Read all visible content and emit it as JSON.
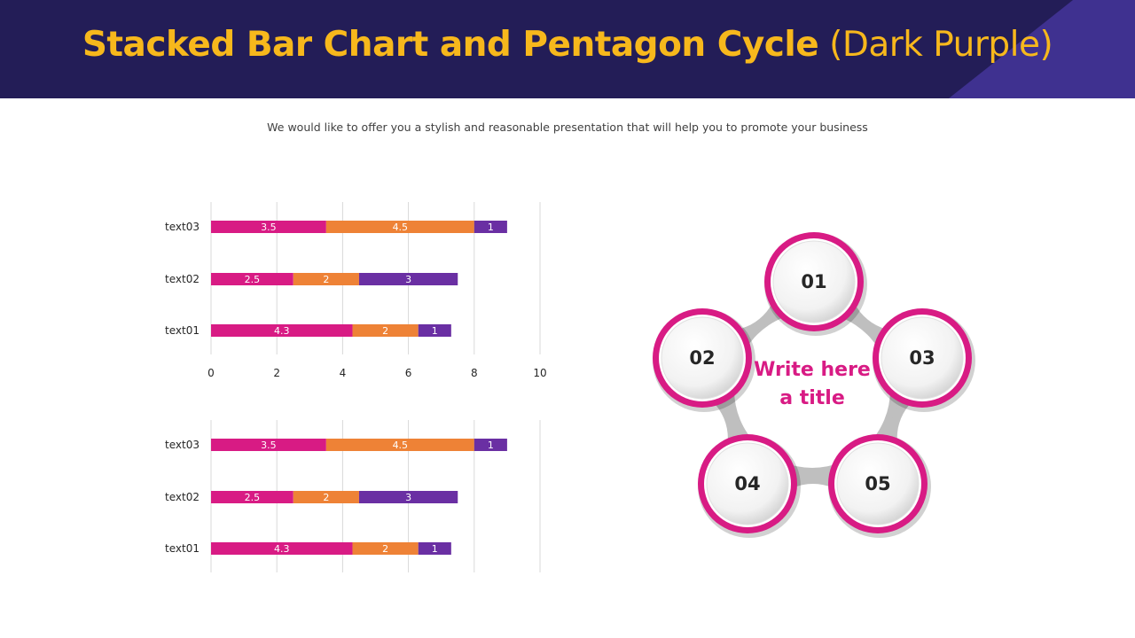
{
  "header": {
    "title_bold": "Stacked Bar Chart and Pentagon Cycle",
    "title_normal": "(Dark Purple)"
  },
  "subtitle": "We would like to offer you a stylish and reasonable presentation that will help you to promote your business",
  "colors": {
    "header_bg": "#231d57",
    "header_accent": "#3f3190",
    "title": "#f7b81c",
    "series": [
      "#d81b84",
      "#ee8236",
      "#6a2fa3"
    ],
    "ring": "#d81b84",
    "connector": "#bfbfbf",
    "center_text": "#d81b84"
  },
  "chart_data": [
    {
      "type": "bar",
      "orientation": "horizontal",
      "stacked": true,
      "categories": [
        "text03",
        "text02",
        "text01"
      ],
      "series": [
        {
          "values": [
            3.5,
            2.5,
            4.3
          ]
        },
        {
          "values": [
            4.5,
            2,
            2
          ]
        },
        {
          "values": [
            1,
            3,
            1
          ]
        }
      ],
      "xlim": [
        0,
        10
      ],
      "x_ticks": [
        "0",
        "2",
        "4",
        "6",
        "8",
        "10"
      ],
      "grid": true,
      "data_labels": true
    },
    {
      "type": "bar",
      "orientation": "horizontal",
      "stacked": true,
      "categories": [
        "text03",
        "text02",
        "text01"
      ],
      "series": [
        {
          "values": [
            3.5,
            2.5,
            4.3
          ]
        },
        {
          "values": [
            4.5,
            2,
            2
          ]
        },
        {
          "values": [
            1,
            3,
            1
          ]
        }
      ],
      "xlim": [
        0,
        10
      ],
      "x_ticks": [],
      "grid": true,
      "data_labels": true
    }
  ],
  "cycle": {
    "center_title": "Write here a title",
    "nodes": [
      "01",
      "02",
      "03",
      "04",
      "05"
    ]
  }
}
